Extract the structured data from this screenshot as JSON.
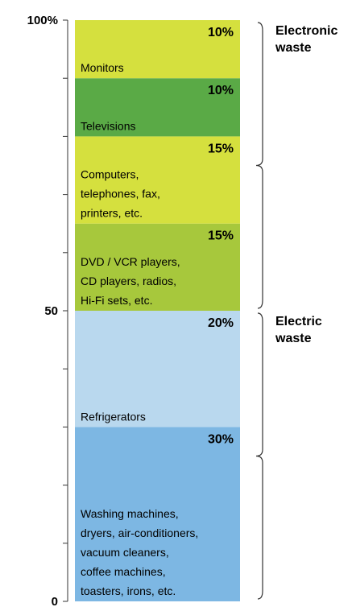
{
  "chart_data": {
    "type": "bar",
    "stacked": true,
    "orientation": "vertical",
    "title": "",
    "xlabel": "",
    "ylabel": "",
    "ylim": [
      0,
      100
    ],
    "y_tick_labels": [
      {
        "value": 0,
        "text": "0"
      },
      {
        "value": 50,
        "text": "50"
      },
      {
        "value": 100,
        "text": "100%"
      }
    ],
    "minor_tick_step": 10,
    "segments": [
      {
        "name": "Washing machines,\ndryers, air-conditioners,\nvacuum cleaners,\ncoffee machines,\ntoasters, irons, etc.",
        "value": 30,
        "label": "30%",
        "color": "#7db7e3"
      },
      {
        "name": "Refrigerators",
        "value": 20,
        "label": "20%",
        "color": "#b9d8ee"
      },
      {
        "name": "DVD / VCR players,\nCD players, radios,\nHi-Fi sets, etc.",
        "value": 15,
        "label": "15%",
        "color": "#a7c83c"
      },
      {
        "name": "Computers,\ntelephones, fax,\nprinters, etc.",
        "value": 15,
        "label": "15%",
        "color": "#d5e03e"
      },
      {
        "name": "Televisions",
        "value": 10,
        "label": "10%",
        "color": "#5aaa46"
      },
      {
        "name": "Monitors",
        "value": 10,
        "label": "10%",
        "color": "#d5e03e"
      }
    ],
    "groups": [
      {
        "label": "Electronic\nwaste",
        "from": 50,
        "to": 100
      },
      {
        "label": "Electric\nwaste",
        "from": 0,
        "to": 50
      }
    ]
  }
}
